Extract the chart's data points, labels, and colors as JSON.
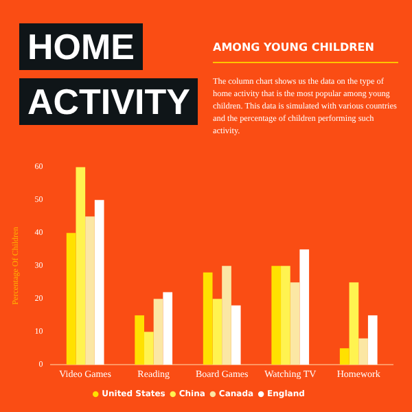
{
  "chart_data": {
    "type": "bar",
    "title": "HOME ACTIVITY",
    "subtitle": "AMONG YOUNG CHILDREN",
    "annotations": [
      "The column chart shows us the data on the type of home activity that is the most popular among young children. This data is simulated with various countries and the percentage of children performing such activity."
    ],
    "ylabel": "Percentage Of Children",
    "categories": [
      "Video Games",
      "Reading",
      "Board Games",
      "Watching TV",
      "Homework"
    ],
    "series": [
      {
        "name": "United States",
        "color": "#ffe100",
        "values": [
          40,
          15,
          28,
          30,
          5
        ]
      },
      {
        "name": "China",
        "color": "#fff350",
        "values": [
          60,
          10,
          20,
          30,
          25
        ]
      },
      {
        "name": "Canada",
        "color": "#fbe7a4",
        "values": [
          45,
          20,
          30,
          25,
          8
        ]
      },
      {
        "name": "England",
        "color": "#ffffff",
        "values": [
          50,
          22,
          18,
          35,
          15
        ]
      }
    ],
    "ylim": [
      0,
      60
    ],
    "yticks": [
      0,
      10,
      20,
      30,
      40,
      50,
      60
    ],
    "grid": false,
    "legend": "bottom"
  }
}
